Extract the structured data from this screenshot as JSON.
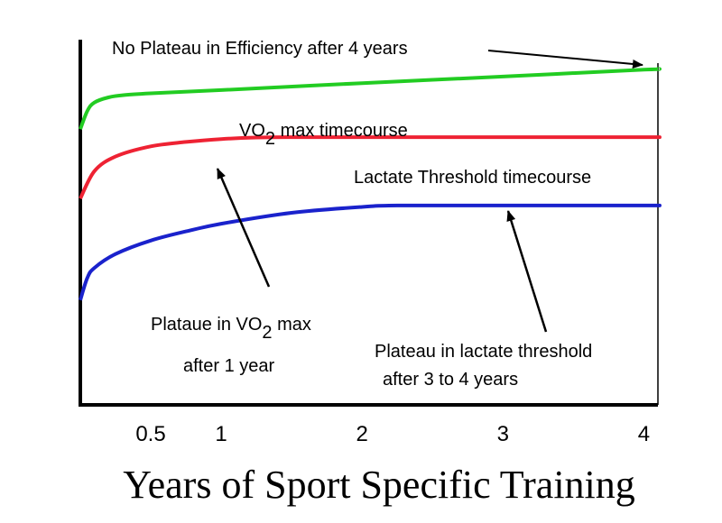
{
  "chart_data": {
    "type": "line",
    "title": "",
    "xlabel": "Years of Sport Specific Training",
    "ylabel": "",
    "xlim": [
      0,
      4.1
    ],
    "ylim": [
      0,
      100
    ],
    "x_ticks": [
      0.5,
      1,
      2,
      3,
      4
    ],
    "x_tick_labels": [
      "0.5",
      "1",
      "2",
      "3",
      "4"
    ],
    "grid": false,
    "series": [
      {
        "name": "Efficiency",
        "color": "#22cc22",
        "x": [
          0,
          0.05,
          0.1,
          0.2,
          0.3,
          0.5,
          1,
          2,
          3,
          4,
          4.1
        ],
        "y": [
          75.5,
          80.5,
          82.8,
          84.2,
          84.8,
          85.3,
          86.2,
          88.1,
          89.9,
          91.8,
          92.0
        ]
      },
      {
        "name": "VO2 max timecourse",
        "color": "#ee2233",
        "x": [
          0,
          0.1,
          0.25,
          0.5,
          0.75,
          1,
          1.25,
          1.5,
          2,
          3,
          4,
          4.1
        ],
        "y": [
          56.5,
          64.0,
          68.0,
          70.8,
          72.0,
          72.8,
          73.2,
          73.3,
          73.3,
          73.3,
          73.3,
          73.3
        ]
      },
      {
        "name": "Lactate Threshold timecourse",
        "color": "#1a22cc",
        "x": [
          0,
          0.05,
          0.1,
          0.25,
          0.5,
          0.75,
          1,
          1.5,
          2,
          2.25,
          3,
          4,
          4.1
        ],
        "y": [
          28.7,
          34.8,
          37.5,
          41.3,
          45.0,
          47.5,
          49.6,
          52.6,
          54.2,
          54.6,
          54.6,
          54.6,
          54.6
        ]
      }
    ],
    "annotations": {
      "efficiency": "No Plateau in Efficiency after 4 years",
      "vo2_label_prefix": "VO",
      "vo2_label_sub": "2",
      "vo2_label_suffix": " max timecourse",
      "lactate_label": "Lactate Threshold timecourse",
      "plateau_vo2_line1_prefix": "Plataue in VO",
      "plateau_vo2_line1_sub": "2",
      "plateau_vo2_line1_suffix": " max",
      "plateau_vo2_line2": "after 1 year",
      "plateau_lactate_line1": "Plateau in lactate threshold",
      "plateau_lactate_line2": "after 3 to 4 years"
    }
  }
}
